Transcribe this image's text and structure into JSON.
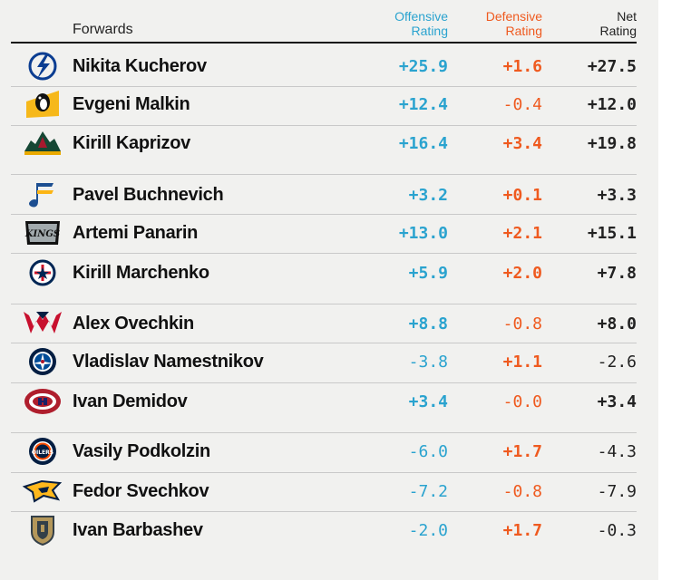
{
  "header": {
    "forwards": "Forwards",
    "offensive_line1": "Offensive",
    "offensive_line2": "Rating",
    "defensive_line1": "Defensive",
    "defensive_line2": "Rating",
    "net_line1": "Net",
    "net_line2": "Rating"
  },
  "colors": {
    "offensive": "#2aa3cf",
    "defensive": "#ef5a1f",
    "net": "#222222",
    "background": "#f1f1ef"
  },
  "players": [
    {
      "name": "Nikita Kucherov",
      "team_logo": "tampa-bay-lightning-icon",
      "offensive": "+25.9",
      "defensive": "+1.6",
      "net": "+27.5"
    },
    {
      "name": "Evgeni Malkin",
      "team_logo": "pittsburgh-penguins-icon",
      "offensive": "+12.4",
      "defensive": "-0.4",
      "net": "+12.0"
    },
    {
      "name": "Kirill Kaprizov",
      "team_logo": "minnesota-wild-icon",
      "offensive": "+16.4",
      "defensive": "+3.4",
      "net": "+19.8"
    },
    {
      "name": "Pavel Buchnevich",
      "team_logo": "st-louis-blues-icon",
      "offensive": "+3.2",
      "defensive": "+0.1",
      "net": "+3.3"
    },
    {
      "name": "Artemi Panarin",
      "team_logo": "la-kings-icon",
      "logo_text": "KINGS",
      "offensive": "+13.0",
      "defensive": "+2.1",
      "net": "+15.1"
    },
    {
      "name": "Kirill Marchenko",
      "team_logo": "columbus-blue-jackets-icon",
      "offensive": "+5.9",
      "defensive": "+2.0",
      "net": "+7.8"
    },
    {
      "name": "Alex Ovechkin",
      "team_logo": "washington-capitals-icon",
      "offensive": "+8.8",
      "defensive": "-0.8",
      "net": "+8.0"
    },
    {
      "name": "Vladislav Namestnikov",
      "team_logo": "winnipeg-jets-icon",
      "offensive": "-3.8",
      "defensive": "+1.1",
      "net": "-2.6"
    },
    {
      "name": "Ivan Demidov",
      "team_logo": "montreal-canadiens-icon",
      "offensive": "+3.4",
      "defensive": "-0.0",
      "net": "+3.4"
    },
    {
      "name": "Vasily Podkolzin",
      "team_logo": "edmonton-oilers-icon",
      "logo_text": "OILERS",
      "offensive": "-6.0",
      "defensive": "+1.7",
      "net": "-4.3"
    },
    {
      "name": "Fedor Svechkov",
      "team_logo": "nashville-predators-icon",
      "offensive": "-7.2",
      "defensive": "-0.8",
      "net": "-7.9"
    },
    {
      "name": "Ivan Barbashev",
      "team_logo": "vegas-golden-knights-icon",
      "offensive": "-2.0",
      "defensive": "+1.7",
      "net": "-0.3"
    }
  ]
}
